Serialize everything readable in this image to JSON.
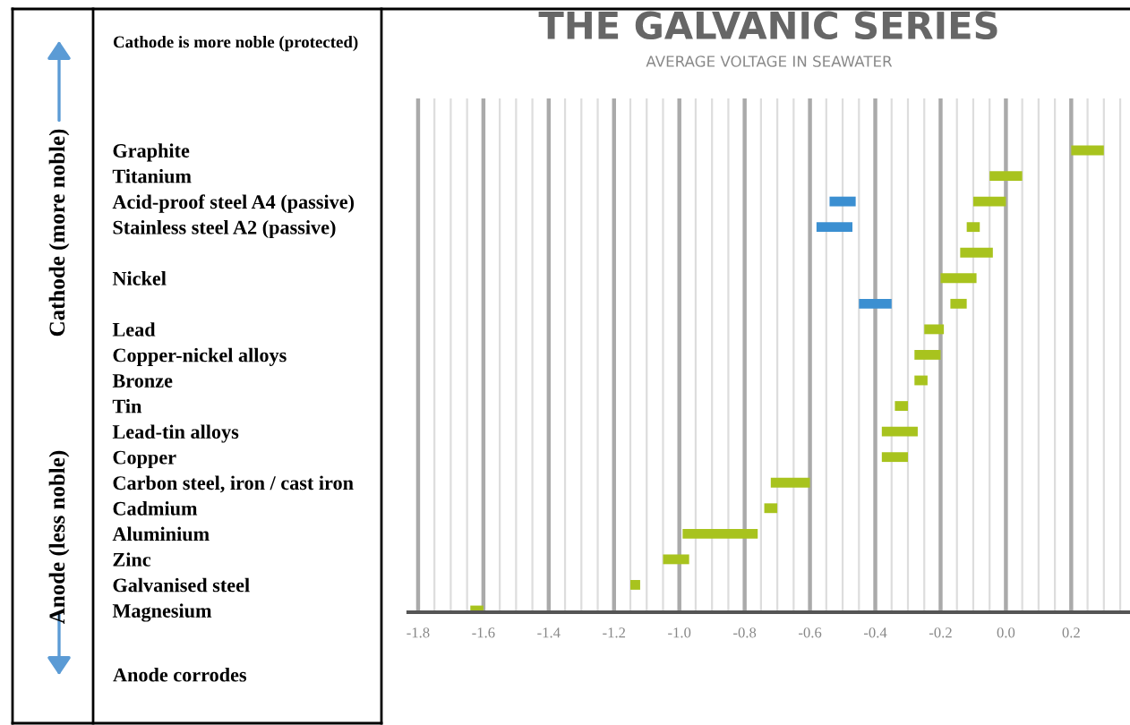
{
  "chart_data": {
    "type": "bar",
    "orientation": "horizontal",
    "title": "THE GALVANIC SERIES",
    "subtitle": "AVERAGE VOLTAGE IN SEAWATER",
    "categories": [
      "Graphite",
      "Titanium",
      "Acid-proof steel A4 (passive)",
      "Stainless steel A2 (passive)",
      null,
      "Nickel",
      null,
      "Lead",
      "Copper-nickel alloys",
      "Bronze",
      "Tin",
      "Lead-tin alloys",
      "Copper",
      "Carbon steel, iron / cast iron",
      "Cadmium",
      "Aluminium",
      "Zinc",
      "Galvanised steel",
      "Magnesium"
    ],
    "series": [
      {
        "color": "#a8c31e",
        "base": [
          0.2,
          -0.05,
          -0.1,
          -0.12,
          -0.14,
          -0.2,
          -0.17,
          -0.25,
          -0.28,
          -0.28,
          -0.34,
          -0.38,
          -0.38,
          -0.72,
          -0.74,
          -0.99,
          -1.05,
          -1.15,
          -1.64
        ],
        "values": [
          0.1,
          0.1,
          0.1,
          0.04,
          0.1,
          0.11,
          0.05,
          0.06,
          0.08,
          0.04,
          0.04,
          0.11,
          0.08,
          0.12,
          0.04,
          0.23,
          0.08,
          0.03,
          0.04
        ]
      },
      {
        "color": "#3b8fd1",
        "base": [
          null,
          null,
          -0.54,
          -0.58,
          null,
          null,
          -0.45,
          null,
          null,
          null,
          null,
          null,
          null,
          null,
          null,
          null,
          null,
          null,
          null
        ],
        "values": [
          null,
          null,
          0.08,
          0.11,
          null,
          null,
          0.1,
          null,
          null,
          null,
          null,
          null,
          null,
          null,
          null,
          null,
          null,
          null,
          null
        ]
      }
    ],
    "xlim": [
      -1.83,
      0.38
    ],
    "xticks": [
      -1.8,
      {
        "value": -1.75,
        "label": null
      },
      {
        "value": -1.7,
        "label": null
      },
      {
        "value": -1.65,
        "label": null
      },
      -1.6,
      {
        "value": -1.55,
        "label": null
      },
      {
        "value": -1.5,
        "label": null
      },
      {
        "value": -1.45,
        "label": null
      },
      -1.4,
      {
        "value": -1.35,
        "label": null
      },
      {
        "value": -1.3,
        "label": null
      },
      {
        "value": -1.25,
        "label": null
      },
      -1.2,
      {
        "value": -1.15,
        "label": null
      },
      {
        "value": -1.1,
        "label": null
      },
      {
        "value": -1.05,
        "label": null
      },
      {
        "value": -1.0,
        "label": "-1.0"
      },
      {
        "value": -0.95,
        "label": null
      },
      {
        "value": -0.9,
        "label": null
      },
      {
        "value": -0.85,
        "label": null
      },
      -0.8,
      {
        "value": -0.75,
        "label": null
      },
      {
        "value": -0.7,
        "label": null
      },
      {
        "value": -0.65,
        "label": null
      },
      -0.6,
      {
        "value": -0.55,
        "label": null
      },
      {
        "value": -0.5,
        "label": null
      },
      {
        "value": -0.45,
        "label": null
      },
      -0.4,
      {
        "value": -0.35,
        "label": null
      },
      {
        "value": -0.3,
        "label": null
      },
      {
        "value": -0.25,
        "label": null
      },
      -0.2,
      {
        "value": -0.15,
        "label": null
      },
      {
        "value": -0.1,
        "label": null
      },
      {
        "value": -0.05,
        "label": null
      },
      {
        "value": 0.0,
        "label": "0.0"
      },
      {
        "value": 0.05,
        "label": null
      },
      {
        "value": 0.1,
        "label": null
      },
      {
        "value": 0.15,
        "label": null
      },
      0.2,
      {
        "value": 0.25,
        "label": null
      },
      {
        "value": 0.3,
        "label": null
      },
      {
        "value": 0.35,
        "label": null
      }
    ],
    "grid": "x",
    "annotations": [
      "Cathode is more noble (protected)",
      "Anode corrodes",
      "Cathode (more noble)",
      "Anode (less noble)"
    ]
  }
}
